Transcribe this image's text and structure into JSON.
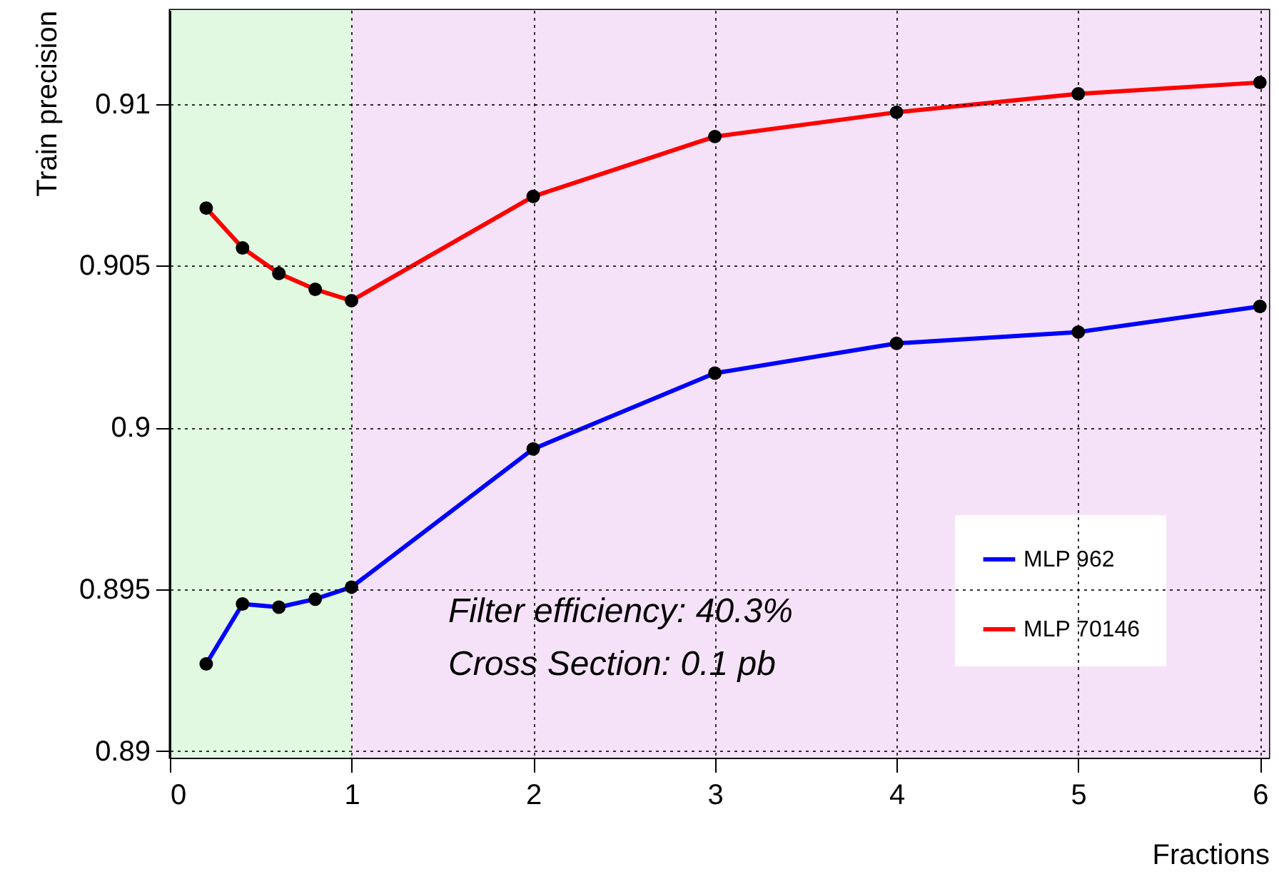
{
  "chart_data": {
    "type": "line",
    "xlabel": "Fractions",
    "ylabel": "Train precision",
    "x": [
      0.2,
      0.4,
      0.6,
      0.8,
      1,
      2,
      3,
      4,
      5,
      6
    ],
    "series": [
      {
        "name": "MLP 962",
        "color": "#0000ff",
        "values": [
          0.8927,
          0.89455,
          0.89445,
          0.8947,
          0.89507,
          0.89934,
          0.90168,
          0.9026,
          0.90295,
          0.90374
        ]
      },
      {
        "name": "MLP 70146",
        "color": "#ff0000",
        "values": [
          0.90678,
          0.90555,
          0.90476,
          0.90427,
          0.90392,
          0.90714,
          0.90899,
          0.90974,
          0.91031,
          0.91066
        ]
      }
    ],
    "xlim": [
      0,
      6.05
    ],
    "xticks": [
      0,
      1,
      2,
      3,
      4,
      5,
      6
    ],
    "ylim": [
      0.8898,
      0.9129
    ],
    "yticks": [
      0.89,
      0.895,
      0.9,
      0.905,
      0.91
    ],
    "bands": [
      {
        "axis": "x",
        "from": 0,
        "to": 1,
        "color": "#e0f9e0"
      },
      {
        "axis": "x",
        "from": 1,
        "to": 6.05,
        "color": "#f6e2f8"
      }
    ],
    "annotations": [
      "Filter efficiency: 40.3%",
      "Cross Section: 0.1 pb"
    ],
    "grid": true,
    "legend": "bottom right",
    "marker": "circle",
    "line_style": "solid"
  }
}
